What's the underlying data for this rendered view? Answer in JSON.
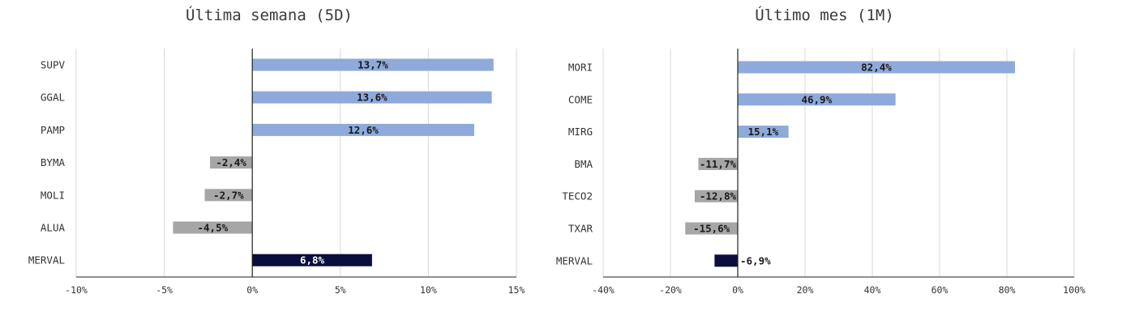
{
  "chart_data": [
    {
      "type": "bar",
      "orientation": "horizontal",
      "title": "Última semana (5D)",
      "categories": [
        "SUPV",
        "GGAL",
        "PAMP",
        "BYMA",
        "MOLI",
        "ALUA",
        "MERVAL"
      ],
      "values": [
        13.7,
        13.6,
        12.6,
        -2.4,
        -2.7,
        -4.5,
        6.8
      ],
      "data_labels": [
        "13,7%",
        "13,6%",
        "12,6%",
        "-2,4%",
        "-2,7%",
        "-4,5%",
        "6,8%"
      ],
      "xlim": [
        -10,
        15
      ],
      "xticks": [
        -10,
        -5,
        0,
        5,
        10,
        15
      ],
      "xtick_labels": [
        "-10%",
        "-5%",
        "0%",
        "5%",
        "10%",
        "15%"
      ],
      "grid": "vertical",
      "legend": "none"
    },
    {
      "type": "bar",
      "orientation": "horizontal",
      "title": "Último mes (1M)",
      "categories": [
        "MORI",
        "COME",
        "MIRG",
        "BMA",
        "TECO2",
        "TXAR",
        "MERVAL"
      ],
      "values": [
        82.4,
        46.9,
        15.1,
        -11.7,
        -12.8,
        -15.6,
        -6.9
      ],
      "data_labels": [
        "82,4%",
        "46,9%",
        "15,1%",
        "-11,7%",
        "-12,8%",
        "-15,6%",
        "-6,9%"
      ],
      "xlim": [
        -40,
        100
      ],
      "xticks": [
        -40,
        -20,
        0,
        20,
        40,
        60,
        80,
        100
      ],
      "xtick_labels": [
        "-40%",
        "-20%",
        "0%",
        "20%",
        "40%",
        "60%",
        "80%",
        "100%"
      ],
      "grid": "vertical",
      "legend": "none"
    }
  ],
  "colors": {
    "positive": "#8eaadb",
    "negative": "#a6a6a6",
    "index": "#0b0d3c",
    "grid": "#d9d9d9",
    "axis": "#222222",
    "text": "#333333"
  }
}
